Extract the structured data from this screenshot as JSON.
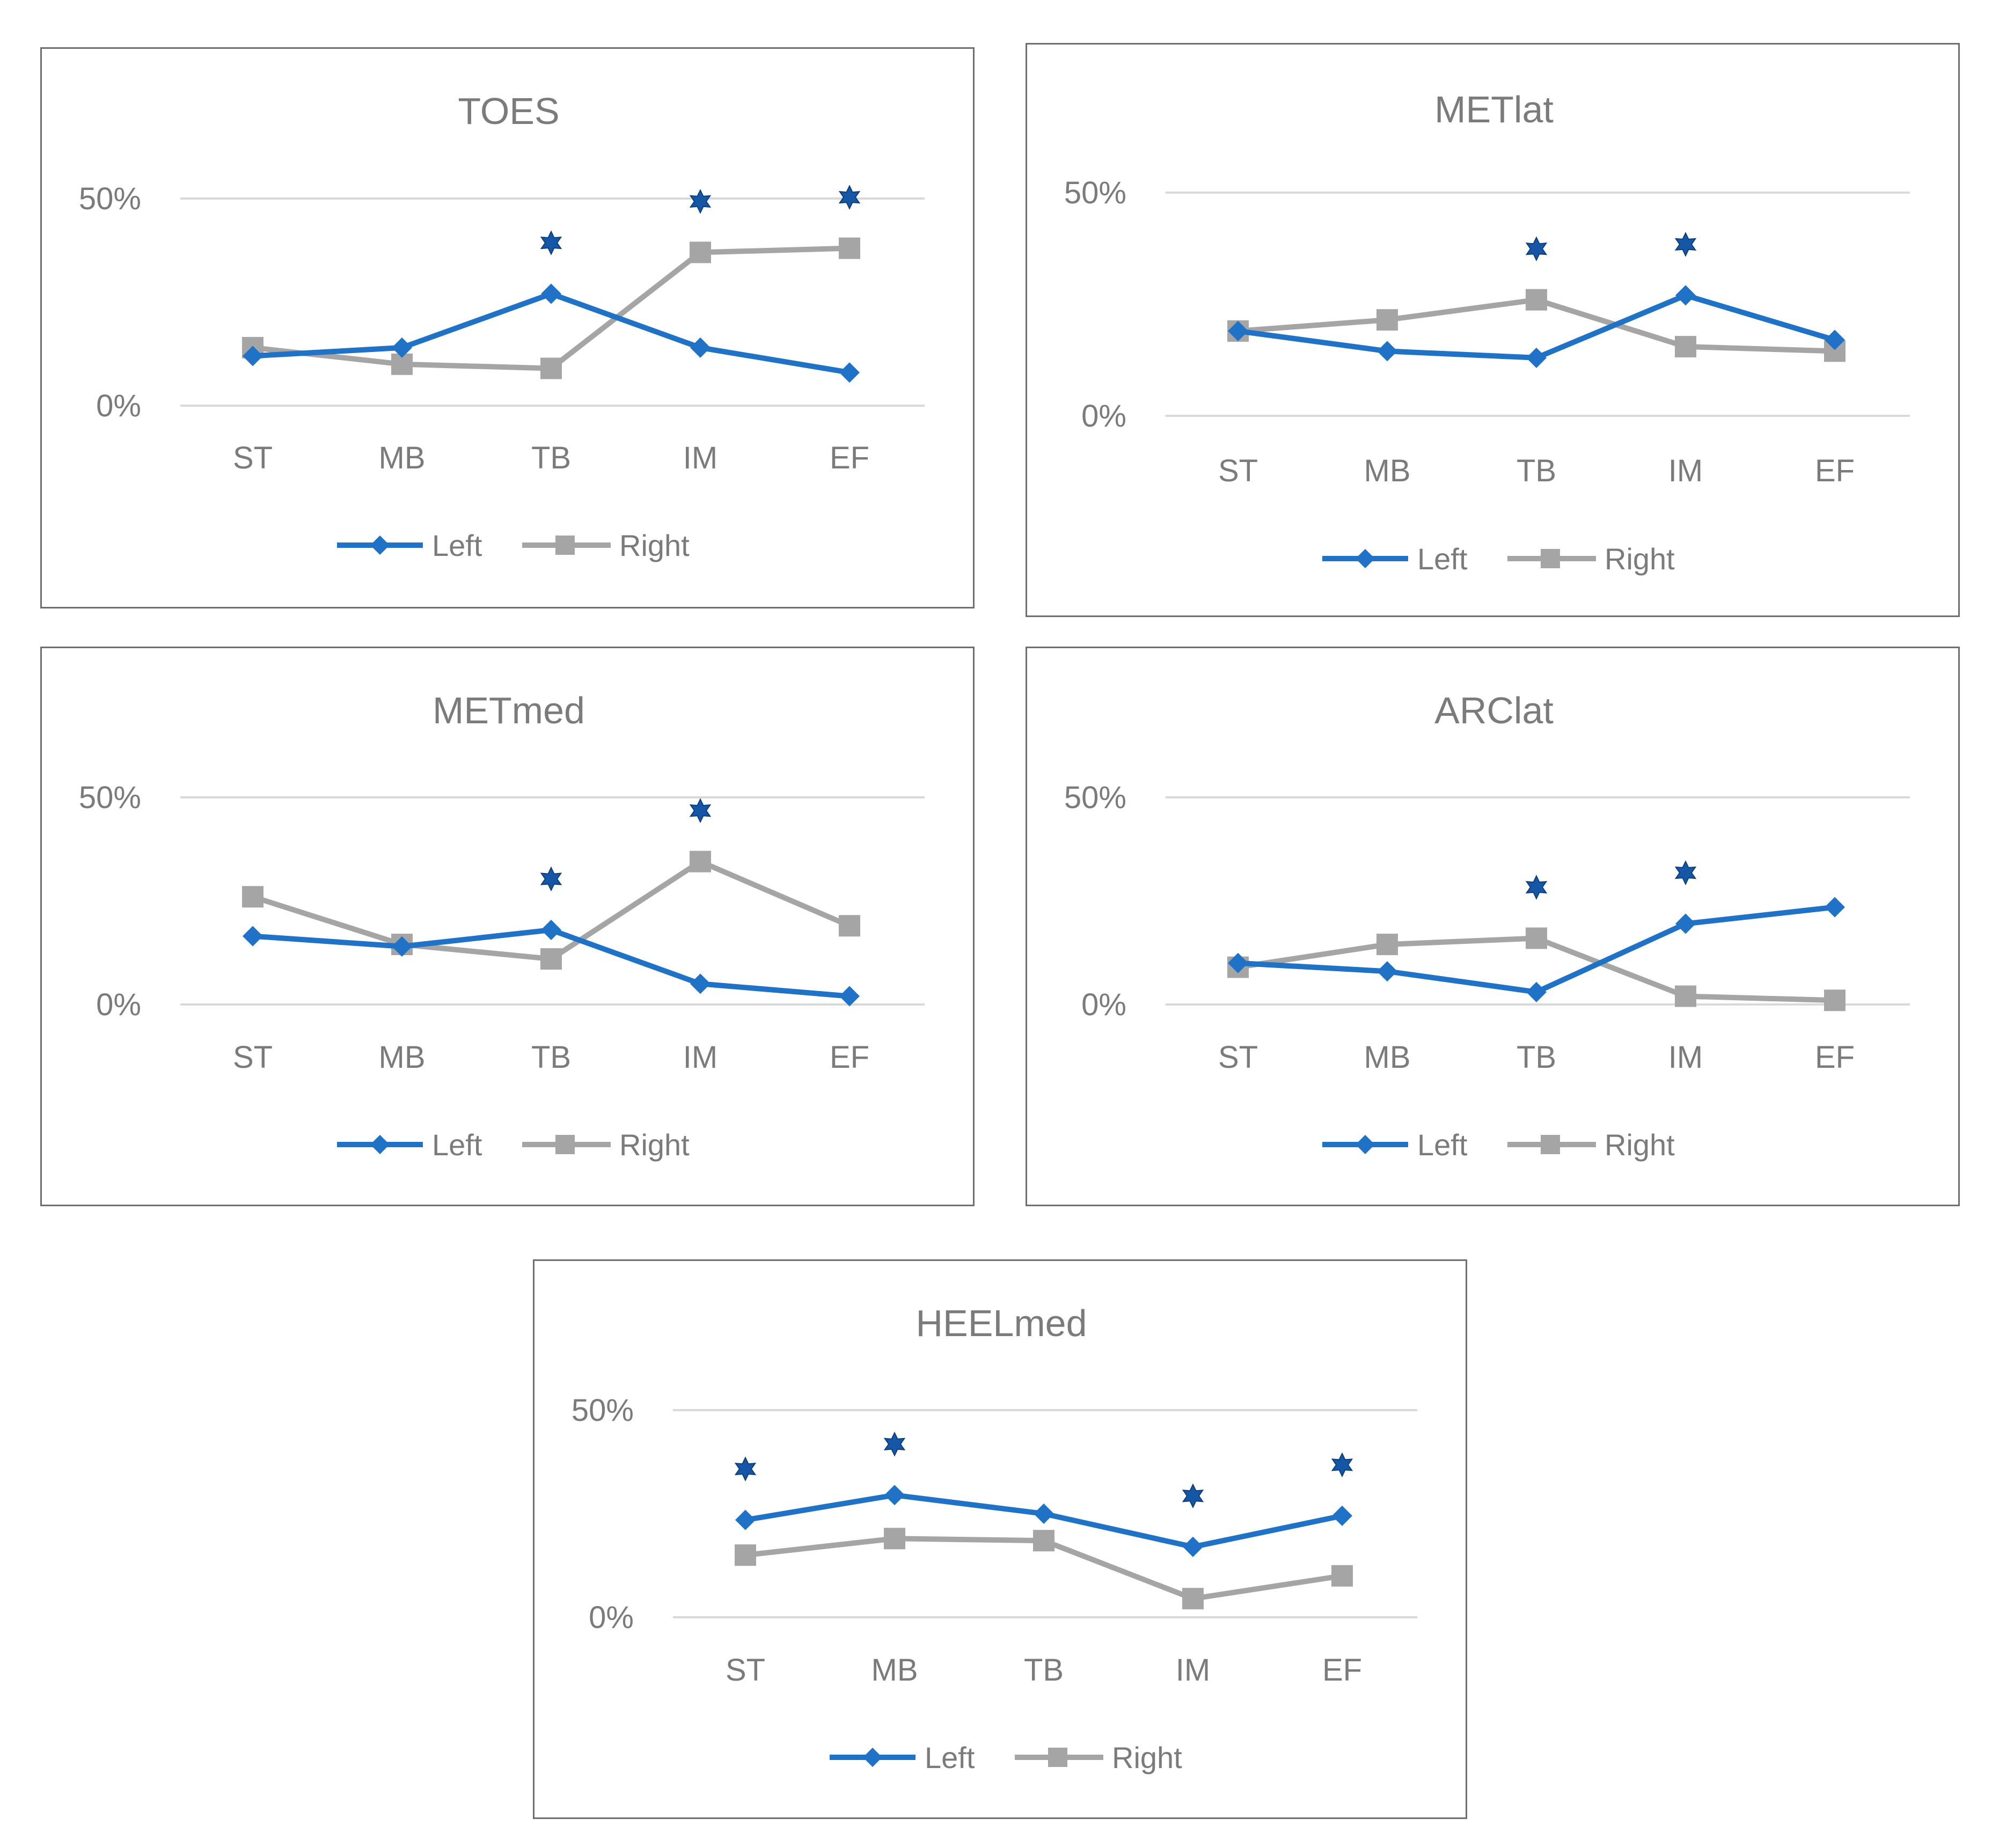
{
  "colors": {
    "left": "#1f72c6",
    "right": "#a5a5a5",
    "star": "#1556a6",
    "grid": "#d9d9d9",
    "text": "#7b7b7b"
  },
  "legend": {
    "left": "Left",
    "right": "Right"
  },
  "chart_data": [
    {
      "type": "line",
      "title": "TOES",
      "categories": [
        "ST",
        "MB",
        "TB",
        "IM",
        "EF"
      ],
      "yticks": [
        "0%",
        "50%"
      ],
      "ylim": [
        0,
        50
      ],
      "series": [
        {
          "name": "Left",
          "values": [
            12,
            14,
            27,
            14,
            8
          ]
        },
        {
          "name": "Right",
          "values": [
            14,
            10,
            9,
            37,
            38
          ]
        }
      ],
      "significant": [
        "TB",
        "IM",
        "EF"
      ],
      "significance_marker": "✡"
    },
    {
      "type": "line",
      "title": "METlat",
      "categories": [
        "ST",
        "MB",
        "TB",
        "IM",
        "EF"
      ],
      "yticks": [
        "0%",
        "50%"
      ],
      "ylim": [
        0,
        50
      ],
      "series": [
        {
          "name": "Left",
          "values": [
            19,
            14.5,
            13,
            27,
            17
          ]
        },
        {
          "name": "Right",
          "values": [
            19,
            21.5,
            26,
            15.5,
            14.5
          ]
        }
      ],
      "significant": [
        "TB",
        "IM"
      ],
      "significance_marker": "✡"
    },
    {
      "type": "line",
      "title": "METmed",
      "categories": [
        "ST",
        "MB",
        "TB",
        "IM",
        "EF"
      ],
      "yticks": [
        "0%",
        "50%"
      ],
      "ylim": [
        0,
        50
      ],
      "series": [
        {
          "name": "Left",
          "values": [
            16.5,
            14,
            18,
            5,
            2
          ]
        },
        {
          "name": "Right",
          "values": [
            26,
            14.5,
            11,
            34.5,
            19
          ]
        }
      ],
      "significant": [
        "TB",
        "IM"
      ],
      "significance_marker": "✡"
    },
    {
      "type": "line",
      "title": "ARClat",
      "categories": [
        "ST",
        "MB",
        "TB",
        "IM",
        "EF"
      ],
      "yticks": [
        "0%",
        "50%"
      ],
      "ylim": [
        0,
        50
      ],
      "series": [
        {
          "name": "Left",
          "values": [
            10,
            8,
            3,
            19.5,
            23.5
          ]
        },
        {
          "name": "Right",
          "values": [
            9,
            14.5,
            16,
            2,
            1
          ]
        }
      ],
      "significant": [
        "TB",
        "IM"
      ],
      "significance_marker": "✡"
    },
    {
      "type": "line",
      "title": "HEELmed",
      "categories": [
        "ST",
        "MB",
        "TB",
        "IM",
        "EF"
      ],
      "yticks": [
        "0%",
        "50%"
      ],
      "ylim": [
        0,
        50
      ],
      "series": [
        {
          "name": "Left",
          "values": [
            23.5,
            29.5,
            25,
            17,
            24.5
          ]
        },
        {
          "name": "Right",
          "values": [
            15,
            19,
            18.5,
            4.5,
            10
          ]
        }
      ],
      "significant": [
        "ST",
        "MB",
        "IM",
        "EF"
      ],
      "significance_marker": "✡"
    }
  ]
}
